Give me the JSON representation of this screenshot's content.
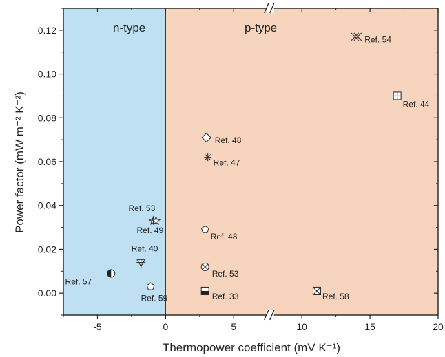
{
  "chart_data": {
    "type": "scatter",
    "xlabel": "Thermopower coefficient (mV K⁻¹)",
    "ylabel": "Power factor (mW m⁻² K⁻²)",
    "x_ticks": [
      -5,
      0,
      5,
      10,
      15,
      20
    ],
    "y_ticks": [
      0.0,
      0.02,
      0.04,
      0.06,
      0.08,
      0.1,
      0.12
    ],
    "axis_break": "between 5 and 10",
    "regions": [
      {
        "label": "n-type",
        "x_range": [
          -7.5,
          0
        ],
        "color": "#bfe0f2"
      },
      {
        "label": "p-type",
        "x_range": [
          0,
          20
        ],
        "color": "#f7d4bd"
      }
    ],
    "points": [
      {
        "label": "Ref. 57",
        "x": -4.0,
        "y": 0.009,
        "marker": "half-circle-icon"
      },
      {
        "label": "Ref. 59",
        "x": -1.1,
        "y": 0.003,
        "marker": "pentagon-icon"
      },
      {
        "label": "Ref. 40",
        "x": -1.8,
        "y": 0.014,
        "marker": "triangle-cross-icon"
      },
      {
        "label": "Ref. 53",
        "x": -0.9,
        "y": 0.033,
        "marker": "star-cross-icon"
      },
      {
        "label": "Ref. 49",
        "x": -0.7,
        "y": 0.033,
        "marker": "star-icon"
      },
      {
        "label": "Ref. 48",
        "x": 3.0,
        "y": 0.071,
        "marker": "diamond-icon"
      },
      {
        "label": "Ref. 47",
        "x": 3.1,
        "y": 0.062,
        "marker": "asterisk-icon"
      },
      {
        "label": "Ref. 48",
        "x": 2.9,
        "y": 0.029,
        "marker": "pentagon-icon"
      },
      {
        "label": "Ref. 53",
        "x": 2.9,
        "y": 0.012,
        "marker": "circle-x-icon"
      },
      {
        "label": "Ref. 33",
        "x": 2.9,
        "y": 0.001,
        "marker": "half-square-icon"
      },
      {
        "label": "Ref. 58",
        "x": 11.1,
        "y": 0.001,
        "marker": "square-x-icon"
      },
      {
        "label": "Ref. 54",
        "x": 14.0,
        "y": 0.117,
        "marker": "double-x-icon"
      },
      {
        "label": "Ref. 44",
        "x": 17.0,
        "y": 0.09,
        "marker": "square-plus-icon"
      }
    ],
    "xlim": [
      -7.5,
      20
    ],
    "ylim": [
      -0.01,
      0.13
    ]
  }
}
